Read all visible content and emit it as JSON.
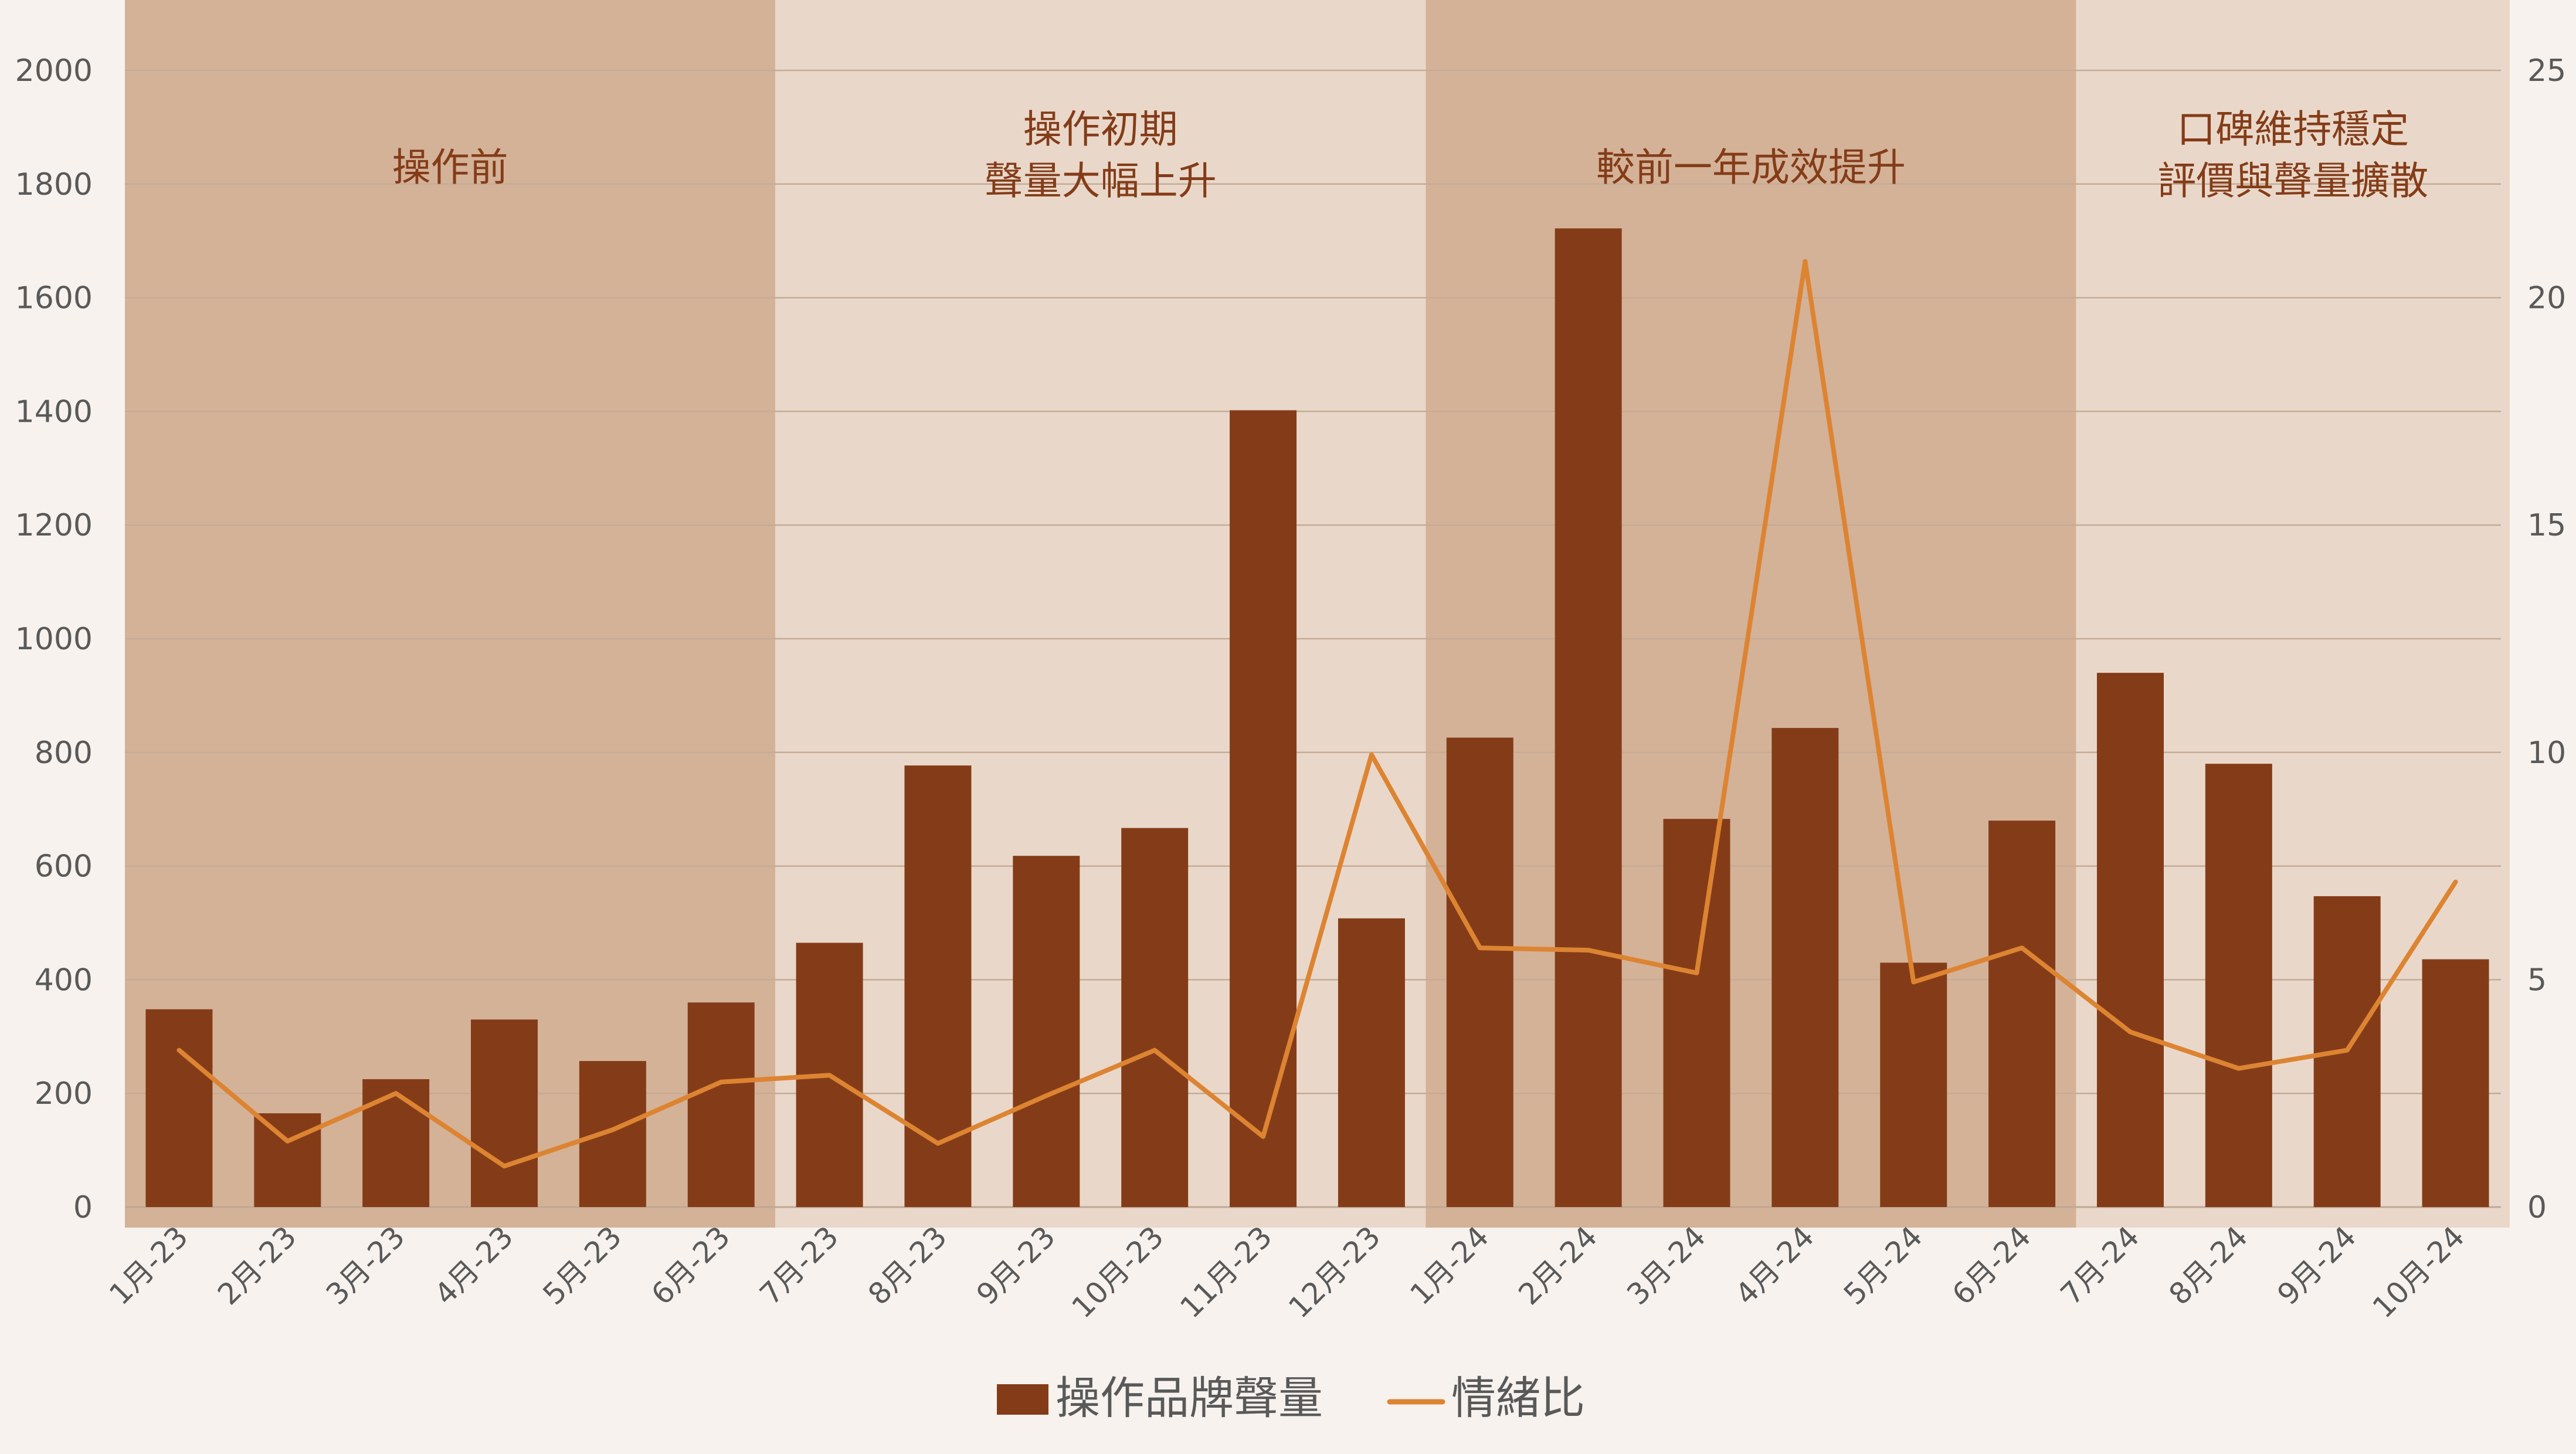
{
  "chart_data": {
    "type": "bar+line",
    "categories": [
      "1月-23",
      "2月-23",
      "3月-23",
      "4月-23",
      "5月-23",
      "6月-23",
      "7月-23",
      "8月-23",
      "9月-23",
      "10月-23",
      "11月-23",
      "12月-23",
      "1月-24",
      "2月-24",
      "3月-24",
      "4月-24",
      "5月-24",
      "6月-24",
      "7月-24",
      "8月-24",
      "9月-24",
      "10月-24"
    ],
    "series": [
      {
        "name": "操作品牌聲量",
        "type": "bar",
        "axis": "left",
        "color": "#843c18",
        "values": [
          348,
          165,
          225,
          330,
          257,
          360,
          465,
          777,
          618,
          667,
          1402,
          508,
          826,
          1722,
          683,
          843,
          430,
          680,
          940,
          780,
          547,
          436
        ]
      },
      {
        "name": "情緒比",
        "type": "line",
        "axis": "right",
        "color": "#dd8432",
        "values": [
          3.45,
          1.45,
          2.5,
          0.9,
          1.7,
          2.75,
          2.9,
          1.4,
          2.45,
          3.45,
          1.55,
          9.95,
          5.7,
          5.65,
          5.15,
          20.8,
          4.95,
          5.7,
          3.85,
          3.05,
          3.45,
          7.15
        ]
      }
    ],
    "y_left": {
      "min": 0,
      "max": 2000,
      "step": 200,
      "ticks": [
        "0",
        "200",
        "400",
        "600",
        "800",
        "1000",
        "1200",
        "1400",
        "1600",
        "1800",
        "2000"
      ]
    },
    "y_right": {
      "min": 0,
      "max": 25,
      "step": 5,
      "ticks": [
        "0",
        "5",
        "10",
        "15",
        "20",
        "25"
      ]
    },
    "bands": [
      {
        "start_index": 0,
        "end_index": 5,
        "lines": [
          "操作前"
        ],
        "color": "#d4b298"
      },
      {
        "start_index": 6,
        "end_index": 11,
        "lines": [
          "操作初期",
          "聲量大幅上升"
        ],
        "color": "#e9d8ca"
      },
      {
        "start_index": 12,
        "end_index": 17,
        "lines": [
          "較前一年成效提升"
        ],
        "color": "#d4b298"
      },
      {
        "start_index": 18,
        "end_index": 21,
        "lines": [
          "口碑維持穩定",
          "評價與聲量擴散"
        ],
        "color": "#e9d8ca"
      }
    ],
    "grid": true,
    "legend_position": "bottom",
    "title": "",
    "xlabel": "",
    "ylabel": ""
  }
}
